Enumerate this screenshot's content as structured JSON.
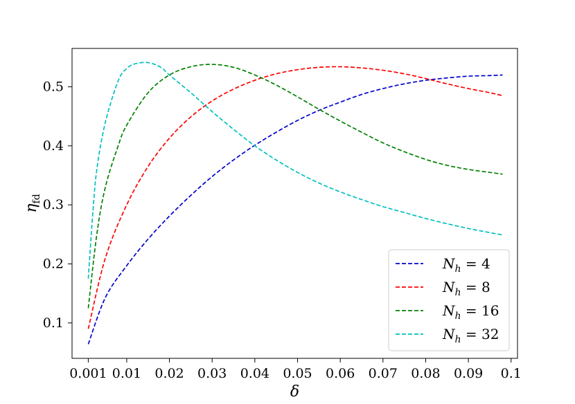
{
  "chart_data": {
    "type": "line",
    "title": "",
    "xlabel": "δ",
    "ylabel": "η",
    "ylabel_subscript": "fd",
    "xlim": [
      -0.0028,
      0.1015
    ],
    "ylim": [
      0.04,
      0.565
    ],
    "xticks": [
      0.001,
      0.01,
      0.02,
      0.03,
      0.04,
      0.05,
      0.06,
      0.07,
      0.08,
      0.09,
      0.1
    ],
    "xtick_labels": [
      "0.001",
      "0.01",
      "0.02",
      "0.03",
      "0.04",
      "0.05",
      "0.06",
      "0.07",
      "0.08",
      "0.09",
      "0.1"
    ],
    "yticks": [
      0.1,
      0.2,
      0.3,
      0.4,
      0.5
    ],
    "ytick_labels": [
      "0.1",
      "0.2",
      "0.3",
      "0.4",
      "0.5"
    ],
    "grid": false,
    "legend_position": "bottom-right",
    "series": [
      {
        "name": "N_h = 4",
        "legend_var": "N",
        "legend_sub": "h",
        "legend_rest": " = 4",
        "color": "#0000cc",
        "x": [
          0.001,
          0.005,
          0.01,
          0.015,
          0.02,
          0.025,
          0.03,
          0.035,
          0.04,
          0.045,
          0.05,
          0.055,
          0.06,
          0.065,
          0.07,
          0.075,
          0.08,
          0.085,
          0.09,
          0.095,
          0.098
        ],
        "y": [
          0.064,
          0.143,
          0.197,
          0.242,
          0.281,
          0.316,
          0.348,
          0.376,
          0.401,
          0.423,
          0.443,
          0.46,
          0.474,
          0.487,
          0.497,
          0.505,
          0.511,
          0.515,
          0.518,
          0.519,
          0.52
        ]
      },
      {
        "name": "N_h = 8",
        "legend_var": "N",
        "legend_sub": "h",
        "legend_rest": " = 8",
        "color": "#ff0000",
        "x": [
          0.001,
          0.005,
          0.01,
          0.015,
          0.02,
          0.025,
          0.03,
          0.035,
          0.04,
          0.045,
          0.05,
          0.055,
          0.06,
          0.065,
          0.07,
          0.075,
          0.08,
          0.085,
          0.09,
          0.095,
          0.098
        ],
        "y": [
          0.09,
          0.21,
          0.3,
          0.365,
          0.413,
          0.449,
          0.476,
          0.496,
          0.511,
          0.522,
          0.529,
          0.533,
          0.534,
          0.532,
          0.528,
          0.522,
          0.514,
          0.505,
          0.497,
          0.49,
          0.485
        ]
      },
      {
        "name": "N_h = 16",
        "legend_var": "N",
        "legend_sub": "h",
        "legend_rest": " = 16",
        "color": "#008000",
        "x": [
          0.001,
          0.003,
          0.005,
          0.008,
          0.01,
          0.015,
          0.02,
          0.025,
          0.03,
          0.035,
          0.04,
          0.045,
          0.05,
          0.055,
          0.06,
          0.065,
          0.07,
          0.075,
          0.08,
          0.085,
          0.09,
          0.095,
          0.098
        ],
        "y": [
          0.125,
          0.25,
          0.33,
          0.4,
          0.435,
          0.49,
          0.52,
          0.534,
          0.538,
          0.533,
          0.52,
          0.503,
          0.483,
          0.462,
          0.442,
          0.423,
          0.405,
          0.39,
          0.377,
          0.367,
          0.36,
          0.355,
          0.352
        ]
      },
      {
        "name": "N_h = 32",
        "legend_var": "N",
        "legend_sub": "h",
        "legend_rest": " = 32",
        "color": "#00bfbf",
        "x": [
          0.001,
          0.002,
          0.003,
          0.005,
          0.008,
          0.01,
          0.012,
          0.015,
          0.018,
          0.02,
          0.025,
          0.03,
          0.035,
          0.04,
          0.045,
          0.05,
          0.055,
          0.06,
          0.065,
          0.07,
          0.075,
          0.08,
          0.085,
          0.09,
          0.095,
          0.098
        ],
        "y": [
          0.175,
          0.28,
          0.36,
          0.44,
          0.51,
          0.531,
          0.539,
          0.541,
          0.533,
          0.52,
          0.49,
          0.458,
          0.428,
          0.4,
          0.376,
          0.355,
          0.337,
          0.322,
          0.309,
          0.297,
          0.287,
          0.277,
          0.268,
          0.26,
          0.253,
          0.249
        ]
      }
    ]
  }
}
